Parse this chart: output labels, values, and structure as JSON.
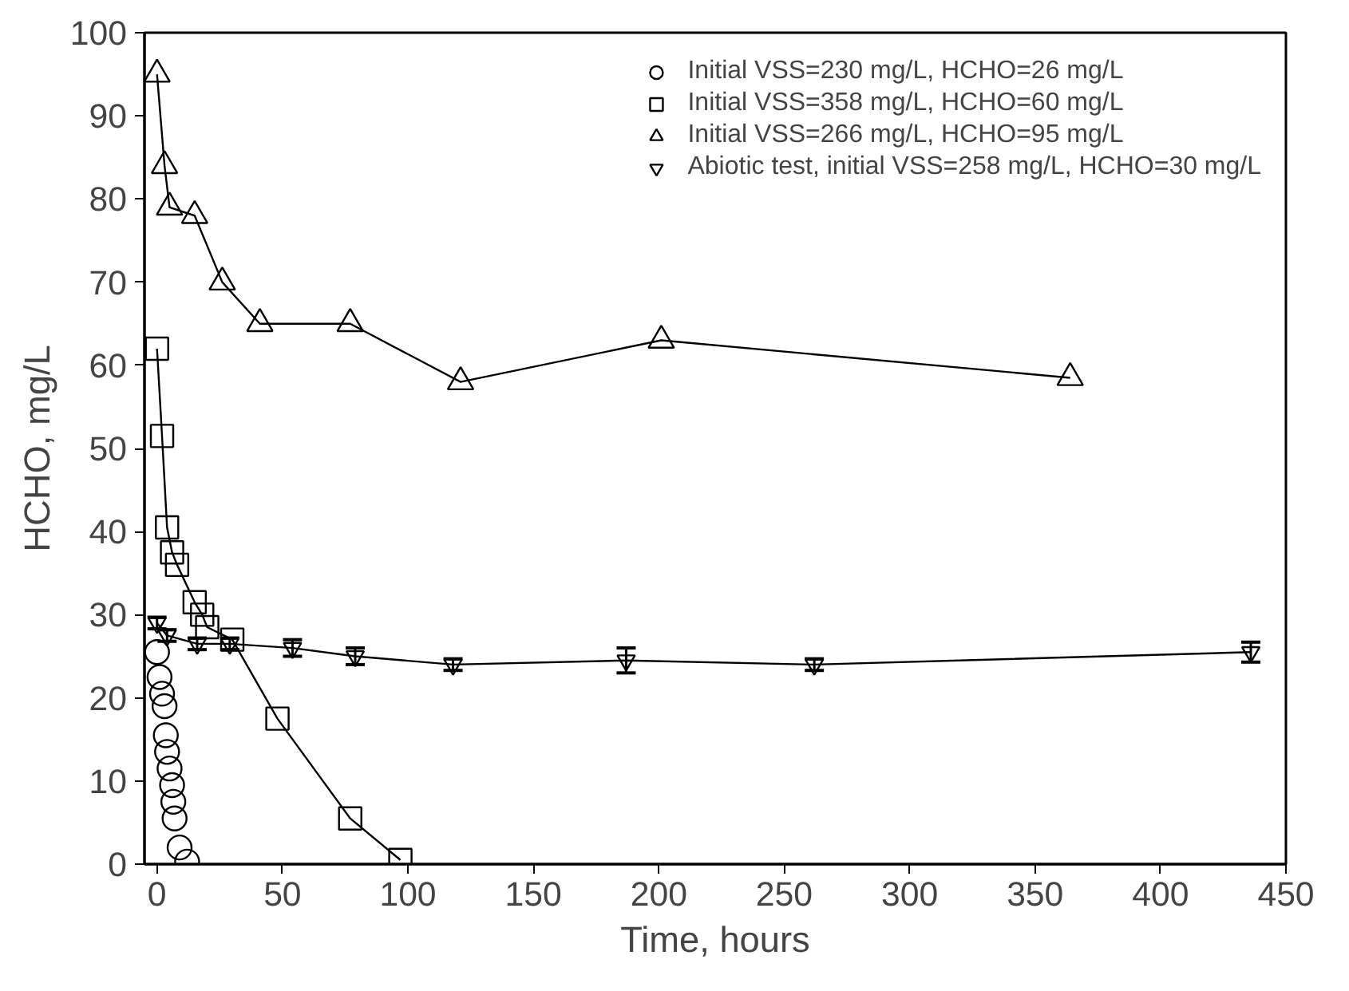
{
  "chart_data": {
    "type": "line",
    "xlabel": "Time, hours",
    "ylabel": "HCHO, mg/L",
    "xlim": [
      -5,
      450
    ],
    "ylim": [
      0,
      100
    ],
    "xticks": [
      0,
      50,
      100,
      150,
      200,
      250,
      300,
      350,
      400,
      450
    ],
    "yticks": [
      0,
      10,
      20,
      30,
      40,
      50,
      60,
      70,
      80,
      90,
      100
    ],
    "grid": false,
    "legend": "top right",
    "series": [
      {
        "name": "Initial VSS=230 mg/L, HCHO=26 mg/L",
        "type": "scatter",
        "color": "#000000",
        "marker": "circle",
        "x": [
          0,
          1,
          2,
          3,
          3.5,
          4,
          5,
          6,
          6.5,
          7,
          9,
          12
        ],
        "values": [
          25.5,
          22.5,
          20.5,
          19,
          15.5,
          13.5,
          11.5,
          9.5,
          7.5,
          5.5,
          2,
          0.3
        ]
      },
      {
        "name": "Initial VSS=358 mg/L, HCHO=60 mg/L",
        "color": "#000000",
        "marker": "square",
        "x": [
          0,
          2,
          4,
          6,
          8,
          15,
          18,
          20,
          30,
          48,
          77,
          97
        ],
        "values": [
          62,
          51.5,
          40.5,
          37.5,
          36,
          31.5,
          30,
          28.5,
          27,
          17.5,
          5.5,
          0.5
        ]
      },
      {
        "name": "Initial VSS=266 mg/L, HCHO=95 mg/L",
        "color": "#000000",
        "marker": "triangle",
        "x": [
          0,
          3,
          5,
          15,
          26,
          41,
          77,
          121,
          201,
          364
        ],
        "values": [
          95,
          84,
          79,
          78,
          70,
          65,
          65,
          58,
          63,
          58.5
        ]
      },
      {
        "name": "Abiotic test, initial VSS=258 mg/L, HCHO=30 mg/L",
        "color": "#000000",
        "marker": "triangle_down",
        "x": [
          0,
          4,
          16,
          29,
          54,
          79,
          118,
          187,
          262,
          436
        ],
        "values": [
          29,
          27.5,
          26.5,
          26.5,
          26,
          25,
          24,
          24.5,
          24,
          25.5
        ],
        "errors": [
          0.7,
          0.7,
          0.7,
          0.7,
          1,
          1,
          0.7,
          1.5,
          0.7,
          1.2
        ]
      }
    ]
  }
}
